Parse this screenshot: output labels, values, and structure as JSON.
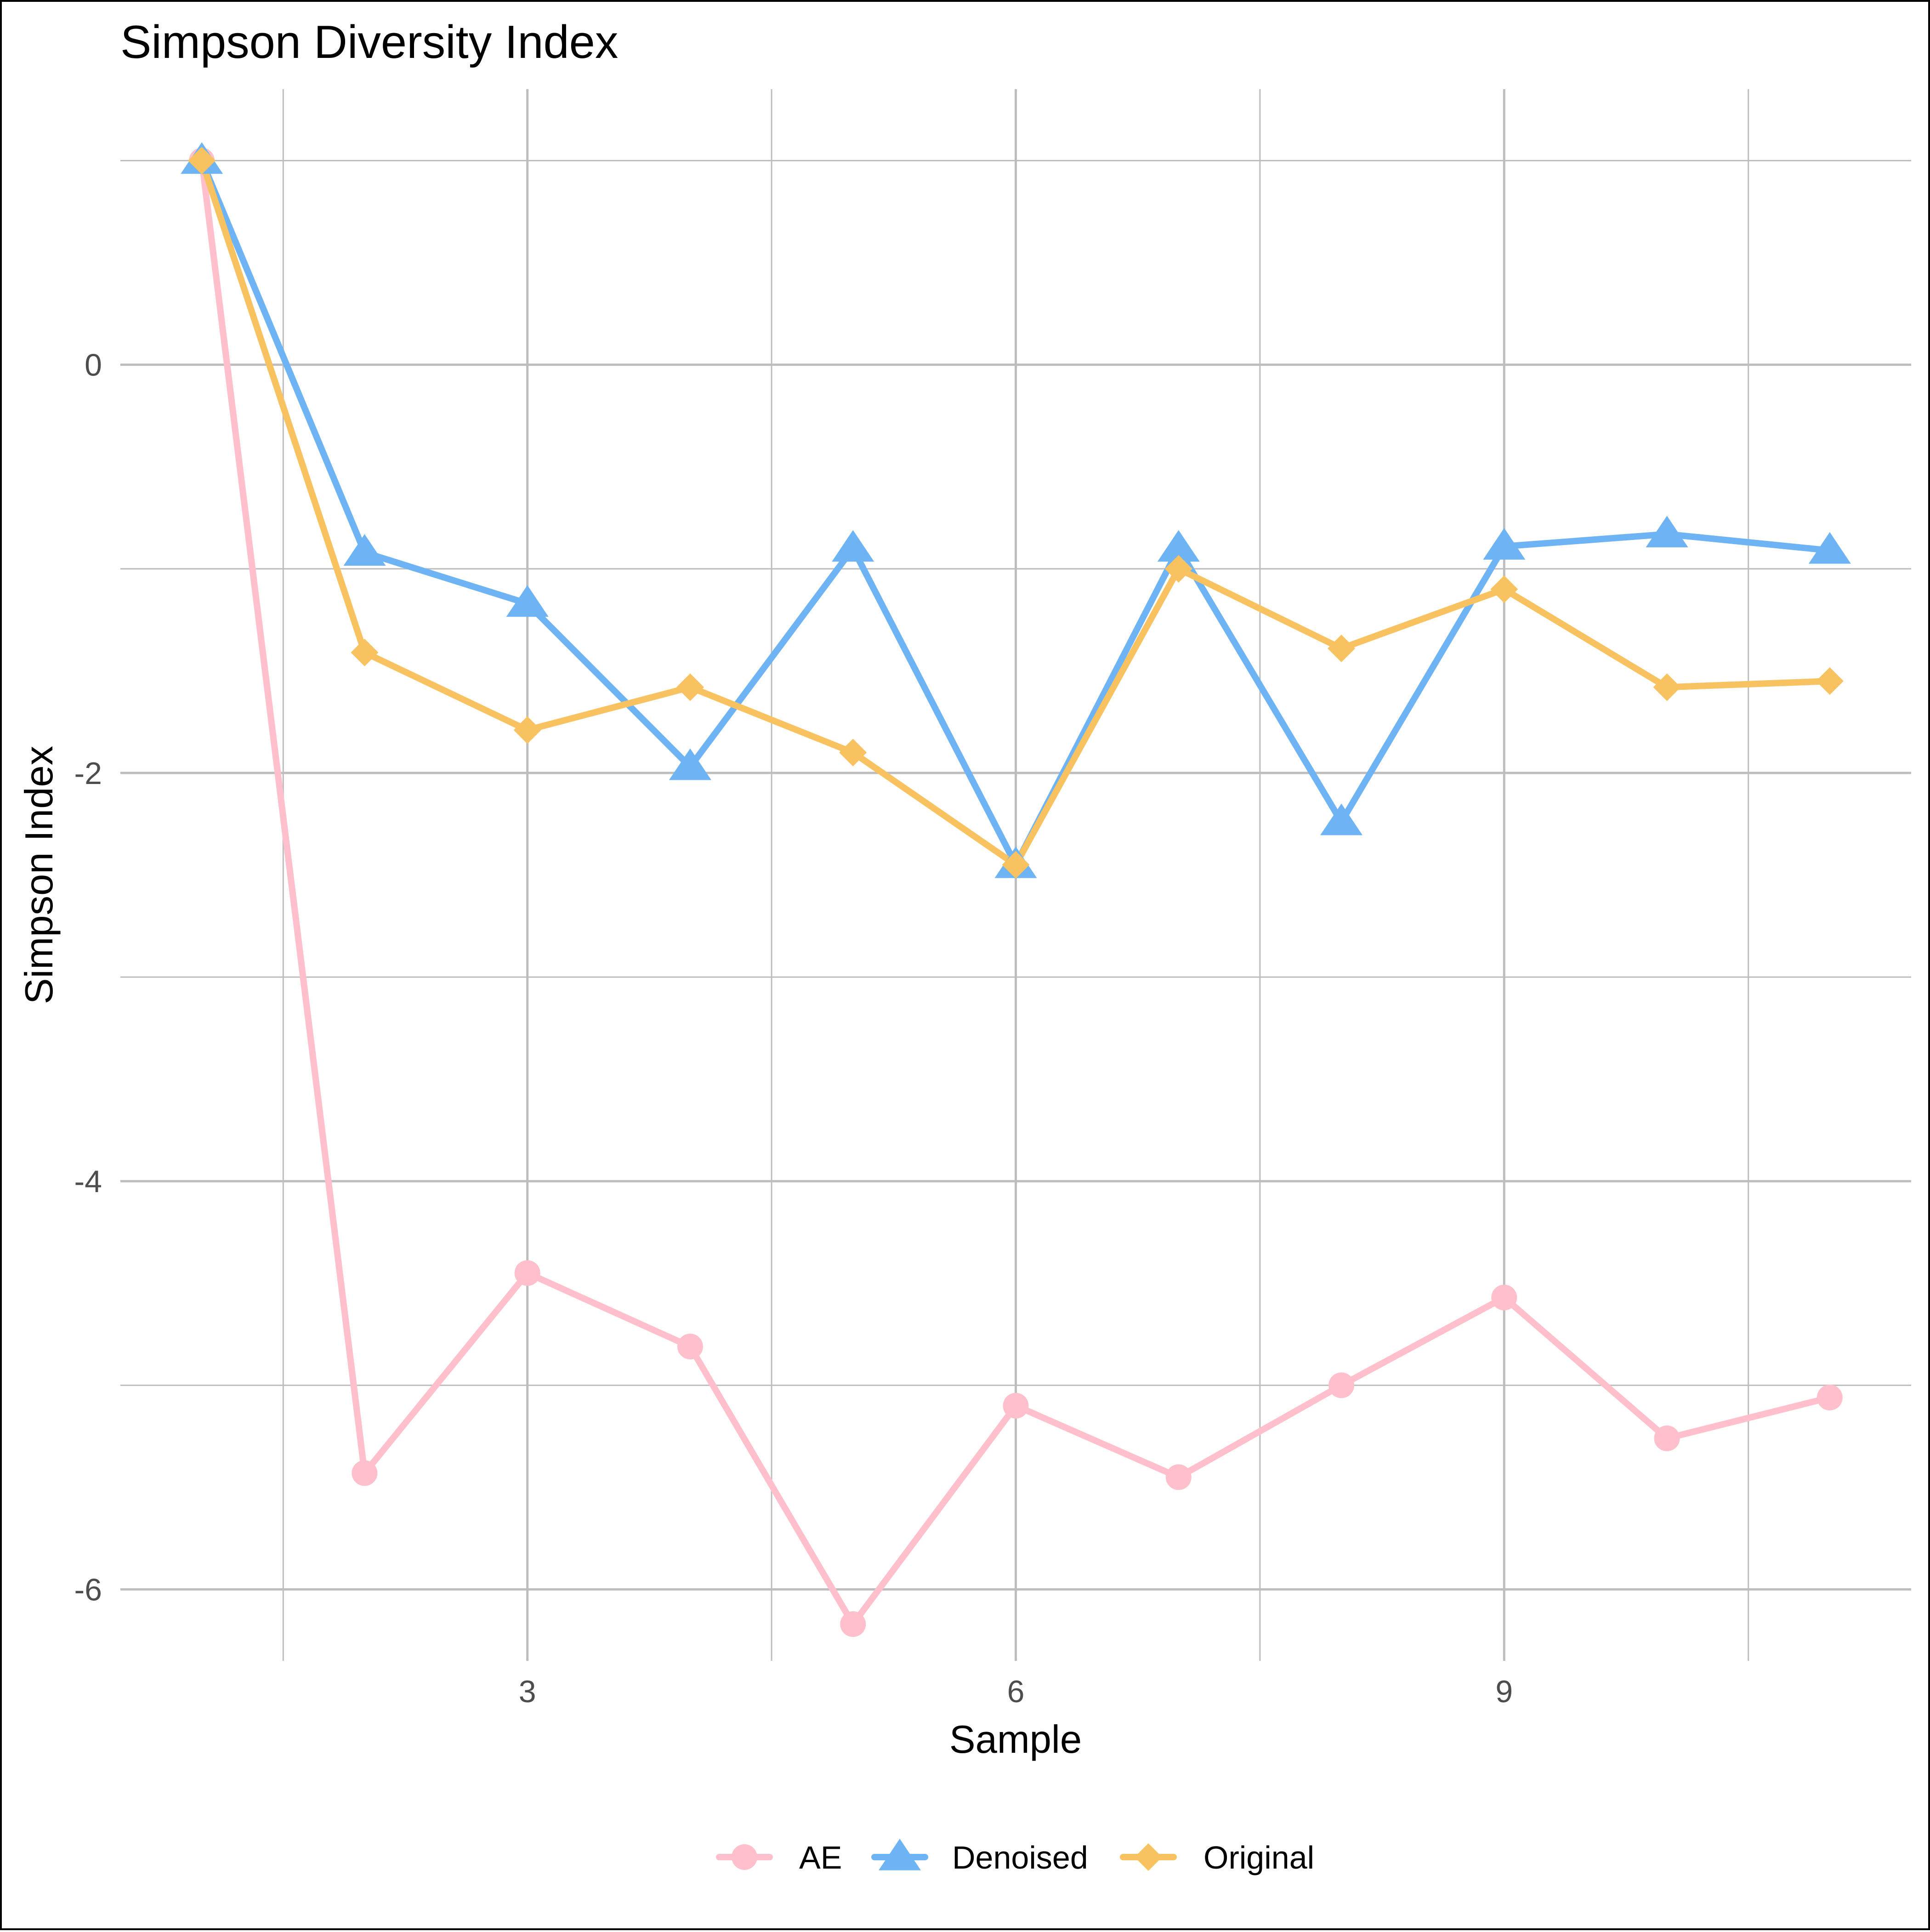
{
  "chart_data": {
    "type": "line",
    "title": "Simpson Diversity Index",
    "xlabel": "Sample",
    "ylabel": "Simpson Index",
    "x": [
      1,
      2,
      3,
      4,
      5,
      6,
      7,
      8,
      9,
      10,
      11
    ],
    "xlim": [
      0.5,
      11.5
    ],
    "ylim": [
      -6.35,
      1.35
    ],
    "x_major_ticks": [
      3,
      6,
      9
    ],
    "x_minor_ticks": [
      1.5,
      4.5,
      7.5,
      10.5
    ],
    "y_major_ticks": [
      0,
      -2,
      -4,
      -6
    ],
    "y_minor_ticks": [
      1,
      -1,
      -3,
      -5
    ],
    "grid": true,
    "legend_position": "bottom",
    "series": [
      {
        "name": "AE",
        "color": "#FFC0CB",
        "marker": "circle",
        "values": [
          1.0,
          -5.43,
          -4.45,
          -4.81,
          -6.17,
          -5.1,
          -5.45,
          -5.0,
          -4.57,
          -5.26,
          -5.06
        ]
      },
      {
        "name": "Denoised",
        "color": "#6EB4F5",
        "marker": "triangle",
        "values": [
          1.0,
          -0.92,
          -1.17,
          -1.97,
          -0.9,
          -2.45,
          -0.9,
          -2.24,
          -0.89,
          -0.83,
          -0.91
        ]
      },
      {
        "name": "Original",
        "color": "#F7C25F",
        "marker": "diamond",
        "values": [
          1.0,
          -1.41,
          -1.79,
          -1.58,
          -1.9,
          -2.45,
          -1.0,
          -1.39,
          -1.1,
          -1.58,
          -1.55
        ]
      }
    ]
  }
}
